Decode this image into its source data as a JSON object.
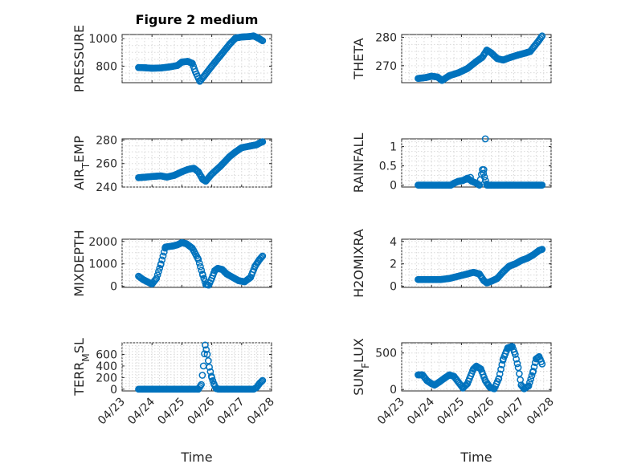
{
  "chart_data": {
    "type": "scatter",
    "figure_title": "Figure 2 medium",
    "marker_color": "#0072BD",
    "marker": "circle-open",
    "grid": true,
    "time_ticks": [
      "04/23",
      "04/24",
      "04/25",
      "04/26",
      "04/27",
      "04/28"
    ],
    "time_range_days": [
      0,
      5
    ],
    "xlabel": "Time",
    "panels": [
      {
        "id": "pressure",
        "ylabel": "PRESSURE",
        "ylim": [
          680,
          1030
        ],
        "yticks": [
          800,
          1000
        ],
        "ytick_labels": [
          "800",
          "1000"
        ],
        "keys": [
          [
            0.55,
            790
          ],
          [
            0.8,
            788
          ],
          [
            1.0,
            785
          ],
          [
            1.3,
            787
          ],
          [
            1.6,
            795
          ],
          [
            1.85,
            805
          ],
          [
            2.0,
            830
          ],
          [
            2.2,
            835
          ],
          [
            2.35,
            820
          ],
          [
            2.45,
            760
          ],
          [
            2.6,
            690
          ],
          [
            2.75,
            730
          ],
          [
            3.0,
            800
          ],
          [
            3.3,
            880
          ],
          [
            3.6,
            960
          ],
          [
            3.8,
            1005
          ],
          [
            4.0,
            1012
          ],
          [
            4.25,
            1015
          ],
          [
            4.4,
            1020
          ],
          [
            4.55,
            1005
          ],
          [
            4.7,
            985
          ]
        ]
      },
      {
        "id": "theta",
        "ylabel": "THETA",
        "ylim": [
          264,
          281
        ],
        "yticks": [
          270,
          280
        ],
        "ytick_labels": [
          "270",
          "280"
        ],
        "keys": [
          [
            0.55,
            265.5
          ],
          [
            0.8,
            265.8
          ],
          [
            1.0,
            266.3
          ],
          [
            1.2,
            266.0
          ],
          [
            1.35,
            264.8
          ],
          [
            1.6,
            266.5
          ],
          [
            1.9,
            267.5
          ],
          [
            2.2,
            269.0
          ],
          [
            2.5,
            271.5
          ],
          [
            2.7,
            273.0
          ],
          [
            2.85,
            275.5
          ],
          [
            3.0,
            274.5
          ],
          [
            3.2,
            272.5
          ],
          [
            3.4,
            272.0
          ],
          [
            3.6,
            272.8
          ],
          [
            3.9,
            273.8
          ],
          [
            4.15,
            274.5
          ],
          [
            4.3,
            275.0
          ],
          [
            4.45,
            277.0
          ],
          [
            4.6,
            279.0
          ],
          [
            4.7,
            280.5
          ]
        ]
      },
      {
        "id": "air_temp",
        "ylabel": "AIR_TEMP",
        "ylim": [
          240,
          281
        ],
        "yticks": [
          240,
          260,
          280
        ],
        "ytick_labels": [
          "240",
          "260",
          "280"
        ],
        "keys": [
          [
            0.55,
            248
          ],
          [
            0.8,
            248.5
          ],
          [
            1.0,
            249
          ],
          [
            1.3,
            249.5
          ],
          [
            1.5,
            248.5
          ],
          [
            1.75,
            250
          ],
          [
            2.0,
            253
          ],
          [
            2.2,
            255
          ],
          [
            2.4,
            256
          ],
          [
            2.55,
            253
          ],
          [
            2.7,
            246.5
          ],
          [
            2.8,
            245
          ],
          [
            3.0,
            251
          ],
          [
            3.3,
            258
          ],
          [
            3.6,
            266
          ],
          [
            3.8,
            270
          ],
          [
            4.0,
            273.5
          ],
          [
            4.3,
            275
          ],
          [
            4.5,
            276
          ],
          [
            4.6,
            277.5
          ],
          [
            4.7,
            278.5
          ]
        ]
      },
      {
        "id": "rainfall",
        "ylabel": "RAINFALL",
        "ylim": [
          -0.05,
          1.2
        ],
        "yticks": [
          0,
          0.5,
          1
        ],
        "ytick_labels": [
          "0",
          "0.5",
          "1"
        ],
        "keys": [
          [
            0.55,
            0
          ],
          [
            1.65,
            0
          ],
          [
            1.75,
            0.05
          ],
          [
            1.9,
            0.1
          ],
          [
            2.05,
            0.12
          ],
          [
            2.2,
            0.18
          ],
          [
            2.35,
            0.1
          ],
          [
            2.5,
            0.05
          ],
          [
            2.6,
            0.0
          ],
          [
            2.7,
            0.4
          ],
          [
            2.85,
            0.0
          ],
          [
            3.0,
            0
          ],
          [
            4.7,
            0
          ]
        ],
        "extra_points": [
          [
            2.8,
            1.2
          ],
          [
            2.75,
            0.4
          ],
          [
            2.3,
            0.2
          ],
          [
            2.15,
            0.15
          ]
        ]
      },
      {
        "id": "mixdepth",
        "ylabel": "MIXDEPTH",
        "ylim": [
          -50,
          2100
        ],
        "yticks": [
          0,
          1000,
          2000
        ],
        "ytick_labels": [
          "0",
          "1000",
          "2000"
        ],
        "keys": [
          [
            0.55,
            450
          ],
          [
            0.7,
            300
          ],
          [
            0.85,
            200
          ],
          [
            1.0,
            100
          ],
          [
            1.15,
            350
          ],
          [
            1.3,
            1000
          ],
          [
            1.45,
            1750
          ],
          [
            1.7,
            1800
          ],
          [
            1.85,
            1850
          ],
          [
            2.0,
            1950
          ],
          [
            2.15,
            1900
          ],
          [
            2.35,
            1700
          ],
          [
            2.55,
            1200
          ],
          [
            2.7,
            500
          ],
          [
            2.8,
            80
          ],
          [
            2.9,
            50
          ],
          [
            3.0,
            350
          ],
          [
            3.1,
            700
          ],
          [
            3.2,
            800
          ],
          [
            3.35,
            750
          ],
          [
            3.5,
            550
          ],
          [
            3.7,
            400
          ],
          [
            3.9,
            250
          ],
          [
            4.1,
            200
          ],
          [
            4.3,
            400
          ],
          [
            4.45,
            900
          ],
          [
            4.6,
            1200
          ],
          [
            4.7,
            1350
          ]
        ]
      },
      {
        "id": "h2omixra",
        "ylabel": "H2OMIXRA",
        "ylim": [
          -0.1,
          4.2
        ],
        "yticks": [
          0,
          2,
          4
        ],
        "ytick_labels": [
          "0",
          "2",
          "4"
        ],
        "keys": [
          [
            0.55,
            0.6
          ],
          [
            1.0,
            0.6
          ],
          [
            1.3,
            0.6
          ],
          [
            1.6,
            0.7
          ],
          [
            1.9,
            0.9
          ],
          [
            2.2,
            1.1
          ],
          [
            2.4,
            1.25
          ],
          [
            2.6,
            1.1
          ],
          [
            2.75,
            0.5
          ],
          [
            2.85,
            0.3
          ],
          [
            3.0,
            0.45
          ],
          [
            3.2,
            0.7
          ],
          [
            3.4,
            1.3
          ],
          [
            3.6,
            1.8
          ],
          [
            3.8,
            2.0
          ],
          [
            4.0,
            2.3
          ],
          [
            4.2,
            2.5
          ],
          [
            4.4,
            2.8
          ],
          [
            4.6,
            3.2
          ],
          [
            4.7,
            3.3
          ]
        ]
      },
      {
        "id": "terr_msl",
        "ylabel": "TERR_MSL",
        "ylim": [
          -30,
          800
        ],
        "yticks": [
          0,
          200,
          400,
          600
        ],
        "ytick_labels": [
          "0",
          "200",
          "400",
          "600"
        ],
        "keys": [
          [
            0.55,
            0
          ],
          [
            2.55,
            0
          ],
          [
            2.65,
            80
          ],
          [
            2.72,
            400
          ],
          [
            2.78,
            760
          ],
          [
            2.85,
            600
          ],
          [
            2.92,
            380
          ],
          [
            3.0,
            200
          ],
          [
            3.08,
            80
          ],
          [
            3.15,
            10
          ],
          [
            3.25,
            0
          ],
          [
            4.4,
            0
          ],
          [
            4.5,
            30
          ],
          [
            4.6,
            100
          ],
          [
            4.7,
            150
          ]
        ]
      },
      {
        "id": "sun_flux",
        "ylabel": "SUN_FLUX",
        "ylim": [
          -20,
          640
        ],
        "yticks": [
          0,
          500
        ],
        "ytick_labels": [
          "0",
          "500"
        ],
        "keys": [
          [
            0.55,
            200
          ],
          [
            0.7,
            200
          ],
          [
            0.85,
            120
          ],
          [
            1.0,
            80
          ],
          [
            1.1,
            60
          ],
          [
            1.25,
            100
          ],
          [
            1.45,
            160
          ],
          [
            1.6,
            200
          ],
          [
            1.75,
            180
          ],
          [
            1.9,
            100
          ],
          [
            2.05,
            20
          ],
          [
            2.2,
            80
          ],
          [
            2.4,
            280
          ],
          [
            2.5,
            320
          ],
          [
            2.65,
            280
          ],
          [
            2.8,
            120
          ],
          [
            2.95,
            30
          ],
          [
            3.1,
            10
          ],
          [
            3.25,
            150
          ],
          [
            3.4,
            420
          ],
          [
            3.55,
            570
          ],
          [
            3.7,
            590
          ],
          [
            3.8,
            480
          ],
          [
            3.9,
            300
          ],
          [
            4.0,
            60
          ],
          [
            4.1,
            10
          ],
          [
            4.25,
            50
          ],
          [
            4.4,
            250
          ],
          [
            4.5,
            420
          ],
          [
            4.6,
            450
          ],
          [
            4.7,
            350
          ]
        ]
      }
    ]
  }
}
